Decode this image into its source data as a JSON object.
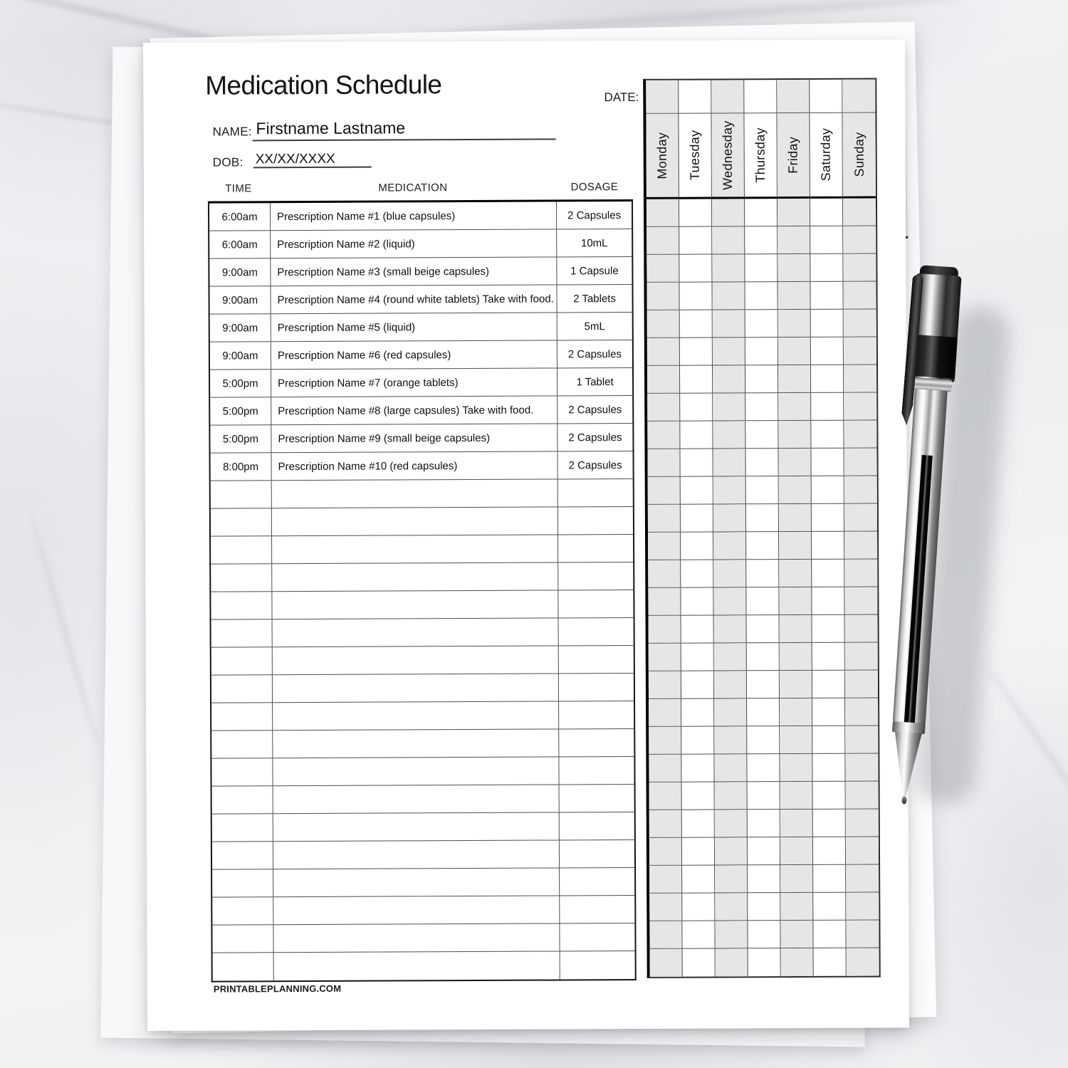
{
  "page": {
    "title": "Medication Schedule",
    "footer": "PRINTABLEPLANNING.COM"
  },
  "form": {
    "name_label": "NAME:",
    "name_value": "Firstname Lastname",
    "dob_label": "DOB:",
    "dob_value": "XX/XX/XXXX",
    "date_label": "DATE:"
  },
  "table": {
    "headers": [
      "TIME",
      "MEDICATION",
      "DOSAGE"
    ],
    "days": [
      "Monday",
      "Tuesday",
      "Wednesday",
      "Thursday",
      "Friday",
      "Saturday",
      "Sunday"
    ],
    "rows": [
      {
        "time": "6:00am",
        "medication": "Prescription Name #1 (blue capsules)",
        "dosage": "2 Capsules"
      },
      {
        "time": "6:00am",
        "medication": "Prescription Name #2 (liquid)",
        "dosage": "10mL"
      },
      {
        "time": "9:00am",
        "medication": "Prescription Name #3 (small beige capsules)",
        "dosage": "1 Capsule"
      },
      {
        "time": "9:00am",
        "medication": "Prescription Name #4 (round white tablets) Take with food.",
        "dosage": "2 Tablets"
      },
      {
        "time": "9:00am",
        "medication": "Prescription Name #5 (liquid)",
        "dosage": "5mL"
      },
      {
        "time": "9:00am",
        "medication": "Prescription Name #6 (red capsules)",
        "dosage": "2 Capsules"
      },
      {
        "time": "5:00pm",
        "medication": "Prescription Name #7 (orange tablets)",
        "dosage": "1 Tablet"
      },
      {
        "time": "5:00pm",
        "medication": "Prescription Name #8 (large capsules) Take with food.",
        "dosage": "2 Capsules"
      },
      {
        "time": "5:00pm",
        "medication": "Prescription Name #9 (small beige capsules)",
        "dosage": "2 Capsules"
      },
      {
        "time": "8:00pm",
        "medication": "Prescription Name #10 (red capsules)",
        "dosage": "2 Capsules"
      }
    ],
    "empty_rows": 18
  },
  "colors": {
    "paper": "#ffffff",
    "cell_shade": "#e6e6e7",
    "grid_line": "#4e4e4e",
    "heavy_line": "#000000",
    "text": "#111111"
  }
}
